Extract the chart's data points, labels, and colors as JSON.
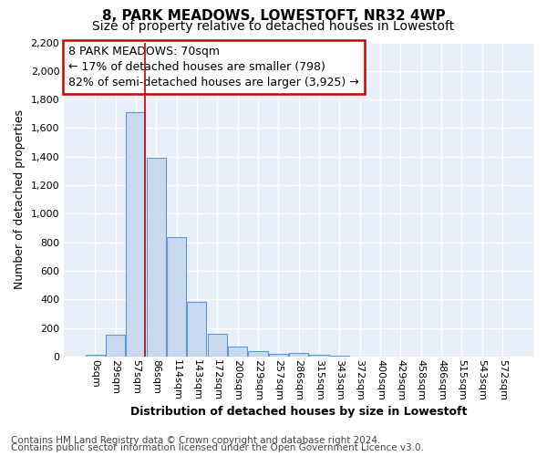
{
  "title": "8, PARK MEADOWS, LOWESTOFT, NR32 4WP",
  "subtitle": "Size of property relative to detached houses in Lowestoft",
  "xlabel": "Distribution of detached houses by size in Lowestoft",
  "ylabel": "Number of detached properties",
  "categories": [
    "0sqm",
    "29sqm",
    "57sqm",
    "86sqm",
    "114sqm",
    "143sqm",
    "172sqm",
    "200sqm",
    "229sqm",
    "257sqm",
    "286sqm",
    "315sqm",
    "343sqm",
    "372sqm",
    "400sqm",
    "429sqm",
    "458sqm",
    "486sqm",
    "515sqm",
    "543sqm",
    "572sqm"
  ],
  "values": [
    15,
    155,
    1710,
    1395,
    835,
    385,
    160,
    70,
    40,
    20,
    25,
    10,
    5,
    0,
    0,
    0,
    0,
    0,
    0,
    0,
    0
  ],
  "bar_color": "#c8d9f0",
  "bar_edge_color": "#5b9bd5",
  "red_line_index": 2,
  "annotation_line1": "8 PARK MEADOWS: 70sqm",
  "annotation_line2": "← 17% of detached houses are smaller (798)",
  "annotation_line3": "82% of semi-detached houses are larger (3,925) →",
  "annotation_box_color": "#ffffff",
  "annotation_box_edge_color": "#cc0000",
  "red_line_color": "#cc0000",
  "ylim": [
    0,
    2200
  ],
  "yticks": [
    0,
    200,
    400,
    600,
    800,
    1000,
    1200,
    1400,
    1600,
    1800,
    2000,
    2200
  ],
  "background_color": "#e8eff8",
  "grid_color": "#ffffff",
  "fig_background": "#ffffff",
  "footer_line1": "Contains HM Land Registry data © Crown copyright and database right 2024.",
  "footer_line2": "Contains public sector information licensed under the Open Government Licence v3.0.",
  "title_fontsize": 11,
  "subtitle_fontsize": 10,
  "xlabel_fontsize": 9,
  "ylabel_fontsize": 9,
  "tick_fontsize": 8,
  "annotation_fontsize": 9,
  "footer_fontsize": 7.5
}
